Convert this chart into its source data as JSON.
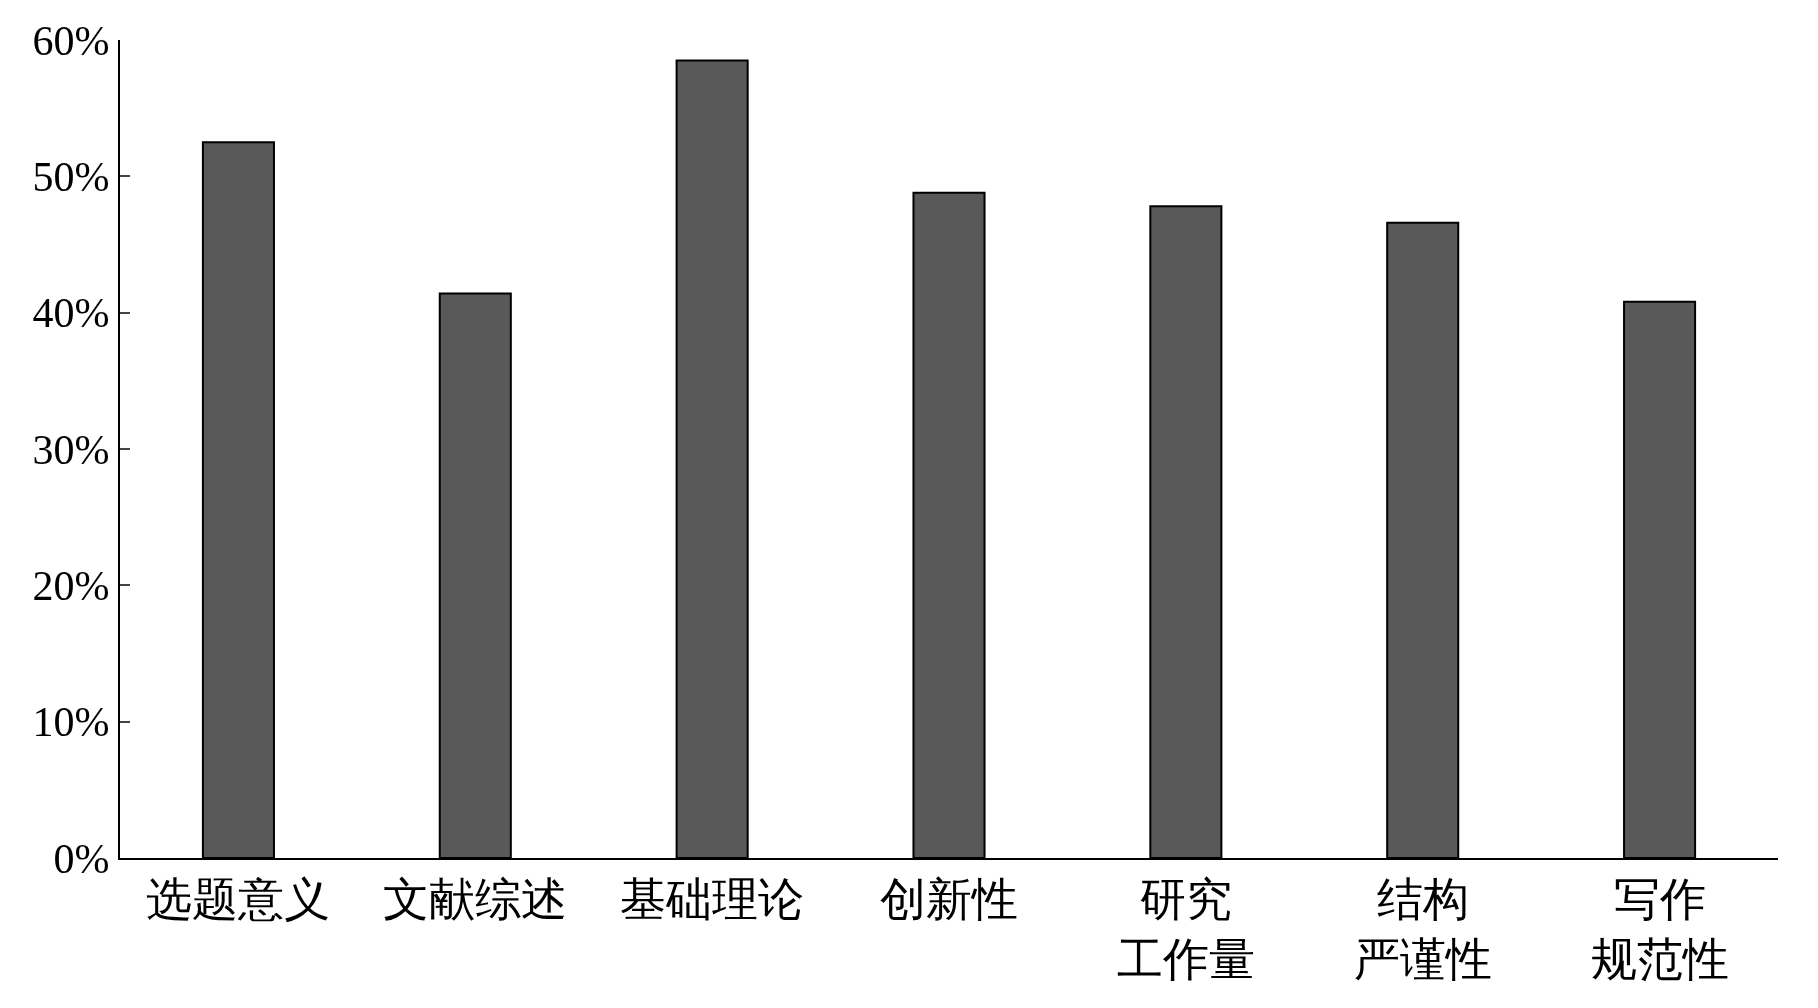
{
  "chart_data": {
    "type": "bar",
    "categories": [
      "选题意义",
      "文献综述",
      "基础理论",
      "创新性",
      "研究工作量",
      "结构严谨性",
      "写作规范性"
    ],
    "values": [
      52.5,
      41.4,
      58.5,
      48.8,
      47.8,
      46.6,
      40.8
    ],
    "color": "#595959",
    "ylim": [
      0,
      60
    ],
    "yticks": [
      {
        "value": 0,
        "label": "0%"
      },
      {
        "value": 10,
        "label": "10%"
      },
      {
        "value": 20,
        "label": "20%"
      },
      {
        "value": 30,
        "label": "30%"
      },
      {
        "value": 40,
        "label": "40%"
      },
      {
        "value": 50,
        "label": "50%"
      },
      {
        "value": 60,
        "label": "60%"
      }
    ]
  }
}
